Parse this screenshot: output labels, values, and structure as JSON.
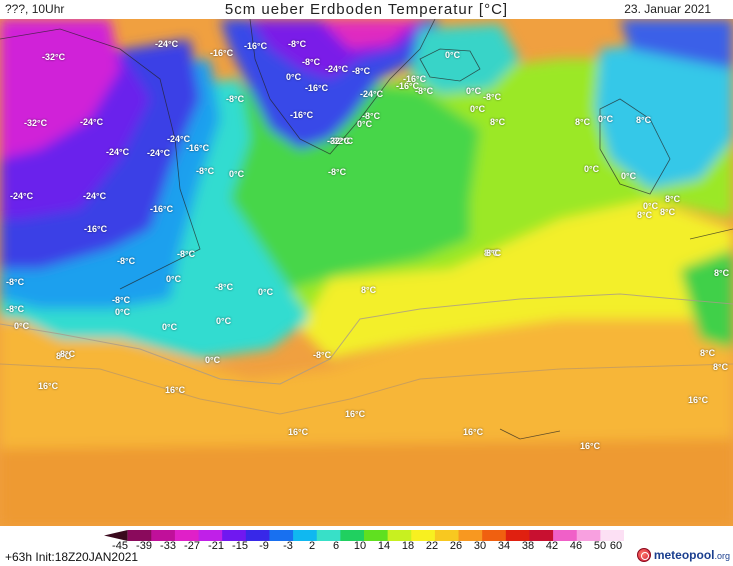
{
  "header": {
    "left": "???, 10Uhr",
    "title": "5cm ueber Erdboden Temperatur [°C]",
    "date": "23. Januar 2021"
  },
  "footer": {
    "init": "+63h Init:18Z20JAN2021",
    "logo": "meteopool",
    "logo_suffix": ".org"
  },
  "legend": {
    "unit": "°C",
    "ticks": [
      "-45",
      "-39",
      "-33",
      "-27",
      "-21",
      "-15",
      "-9",
      "-3",
      "2",
      "6",
      "10",
      "14",
      "18",
      "22",
      "26",
      "30",
      "34",
      "38",
      "42",
      "46",
      "50",
      "60"
    ],
    "colors": [
      "#3a0a1e",
      "#8a0a5c",
      "#c0109a",
      "#e020c8",
      "#c020e8",
      "#7018f0",
      "#3828e8",
      "#1870f0",
      "#10b8f0",
      "#38e0c8",
      "#20d060",
      "#60e020",
      "#c8f020",
      "#f8f020",
      "#f8c820",
      "#f89820",
      "#f06010",
      "#e02010",
      "#c81030",
      "#f060c8",
      "#f8a0e0",
      "#fce0f4"
    ]
  },
  "map": {
    "region": "North Atlantic / Greenland / Western Europe",
    "labels": [
      {
        "text": "-32°C"
      },
      {
        "text": "-24°C"
      },
      {
        "text": "-16°C"
      },
      {
        "text": "-16°C"
      },
      {
        "text": "-8°C"
      },
      {
        "text": "-32°C"
      },
      {
        "text": "-24°C"
      },
      {
        "text": "0°C"
      },
      {
        "text": "-8°C"
      },
      {
        "text": "0°C"
      },
      {
        "text": "-8°C"
      },
      {
        "text": "-16°C"
      },
      {
        "text": "-24°C"
      },
      {
        "text": "-8°C"
      },
      {
        "text": "-16°C"
      },
      {
        "text": "-8°C"
      },
      {
        "text": "0°C"
      },
      {
        "text": "0°C"
      },
      {
        "text": "-8°C"
      },
      {
        "text": "-32°C"
      },
      {
        "text": "-24°C"
      },
      {
        "text": "-24°C"
      },
      {
        "text": "-24°C"
      },
      {
        "text": "-24°C"
      },
      {
        "text": "-16°C"
      },
      {
        "text": "-16°C"
      },
      {
        "text": "0°C"
      },
      {
        "text": "-8°C"
      },
      {
        "text": "8°C"
      },
      {
        "text": "8°C"
      },
      {
        "text": "0°C"
      },
      {
        "text": "-16°C"
      },
      {
        "text": "-32°C"
      },
      {
        "text": "-8°C"
      },
      {
        "text": "-8°C"
      },
      {
        "text": "0°C"
      },
      {
        "text": "0°C"
      },
      {
        "text": "0°C"
      },
      {
        "text": "8°C"
      },
      {
        "text": "0°C"
      },
      {
        "text": "8°C"
      },
      {
        "text": "-24°C"
      },
      {
        "text": "-24°C"
      },
      {
        "text": "-16°C"
      },
      {
        "text": "-16°C"
      },
      {
        "text": "-8°C"
      },
      {
        "text": "-8°C"
      },
      {
        "text": "0°C"
      },
      {
        "text": "-8°C"
      },
      {
        "text": "0°C"
      },
      {
        "text": "-8°C"
      },
      {
        "text": "0°C"
      },
      {
        "text": "8°C"
      },
      {
        "text": "8°C"
      },
      {
        "text": "8°C"
      },
      {
        "text": "-8°C"
      },
      {
        "text": "-8°C"
      },
      {
        "text": "0°C"
      },
      {
        "text": "8°C"
      },
      {
        "text": "0°C"
      },
      {
        "text": "0°C"
      },
      {
        "text": "-8°C"
      },
      {
        "text": "0°C"
      },
      {
        "text": "8°C"
      },
      {
        "text": "8°C"
      },
      {
        "text": "8°C"
      },
      {
        "text": "16°C"
      },
      {
        "text": "16°C"
      },
      {
        "text": "16°C"
      },
      {
        "text": "16°C"
      },
      {
        "text": "16°C"
      },
      {
        "text": "16°C"
      },
      {
        "text": "16°C"
      },
      {
        "text": "8°C"
      },
      {
        "text": "8°C"
      },
      {
        "text": "8°C"
      }
    ]
  }
}
